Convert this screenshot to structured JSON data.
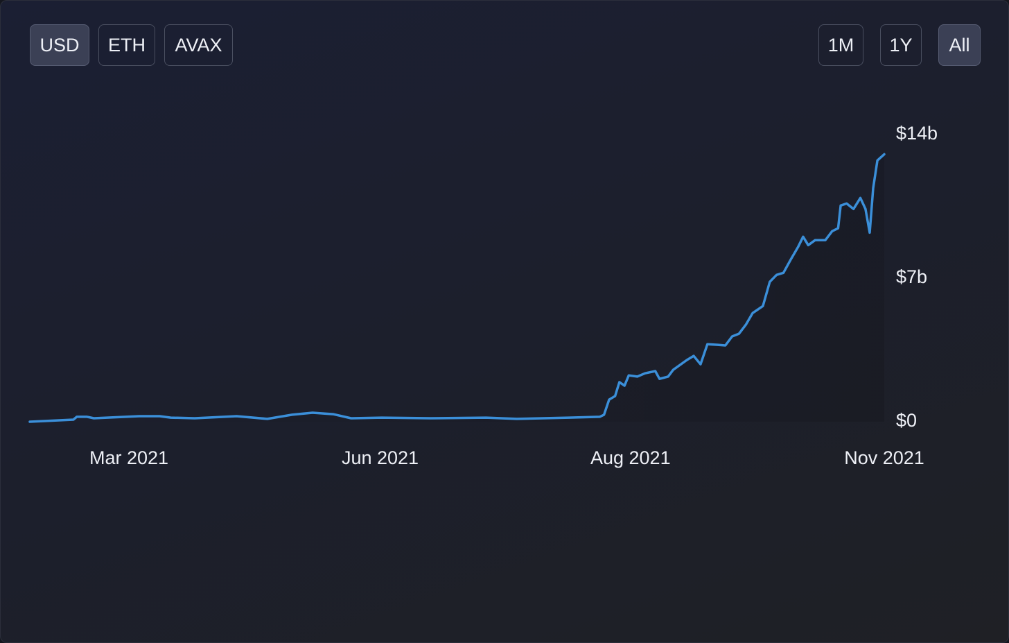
{
  "buttons": {
    "currency": [
      "USD",
      "ETH",
      "AVAX"
    ],
    "range": [
      "1M",
      "1Y",
      "All"
    ]
  },
  "chart_data": {
    "type": "line",
    "color": "#3b8fd9",
    "x": [
      0,
      5.1,
      5.5,
      6.7,
      7.5,
      12.8,
      15.2,
      16.5,
      19.3,
      24.2,
      27.8,
      30.7,
      33.1,
      35.5,
      37.6,
      41.2,
      46.9,
      53.4,
      57,
      63.1,
      66.7,
      67.2,
      67.8,
      68.5,
      69,
      69.6,
      70.1,
      71.1,
      72,
      73.2,
      73.7,
      74.7,
      75.3,
      76.9,
      77.7,
      78.5,
      79.3,
      80.5,
      81.4,
      82.2,
      83,
      83.8,
      84.6,
      85.8,
      86.6,
      87.4,
      88.2,
      89.1,
      89.9,
      90.5,
      91.1,
      91.9,
      93.1,
      93.9,
      94.6,
      94.9,
      95.6,
      96.4,
      97.2,
      97.8,
      98.3,
      98.7,
      99.2,
      100
    ],
    "values": [
      0,
      0.1,
      0.24,
      0.24,
      0.17,
      0.27,
      0.27,
      0.2,
      0.17,
      0.27,
      0.14,
      0.34,
      0.44,
      0.37,
      0.17,
      0.2,
      0.17,
      0.2,
      0.14,
      0.2,
      0.24,
      0.34,
      1.08,
      1.25,
      1.93,
      1.76,
      2.26,
      2.2,
      2.36,
      2.47,
      2.09,
      2.2,
      2.53,
      3.01,
      3.21,
      2.8,
      3.78,
      3.75,
      3.72,
      4.16,
      4.29,
      4.73,
      5.3,
      5.64,
      6.82,
      7.16,
      7.26,
      7.94,
      8.51,
      9.02,
      8.61,
      8.85,
      8.85,
      9.29,
      9.43,
      10.54,
      10.64,
      10.37,
      10.91,
      10.37,
      9.22,
      11.39,
      12.74,
      13.04
    ],
    "xlim": [
      0,
      100
    ],
    "xticks": [
      {
        "value": 11.6,
        "label": "Mar 2021"
      },
      {
        "value": 41,
        "label": "Jun 2021"
      },
      {
        "value": 70.3,
        "label": "Aug 2021"
      },
      {
        "value": 100,
        "label": "Nov 2021"
      }
    ],
    "ylim": [
      0,
      14
    ],
    "yticks": [
      {
        "value": 0,
        "label": "$0"
      },
      {
        "value": 7,
        "label": "$7b"
      },
      {
        "value": 14,
        "label": "$14b"
      }
    ]
  }
}
